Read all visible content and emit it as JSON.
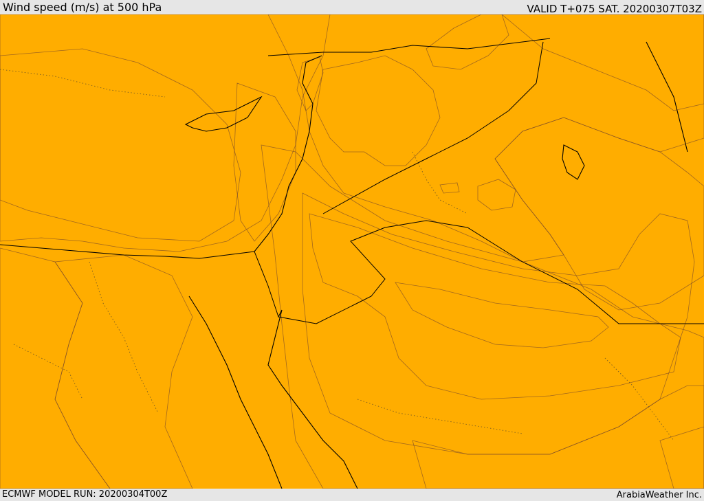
{
  "header": {
    "title": "Wind speed (m/s) at 500 hPa",
    "valid": "VALID T+075 SAT. 20200307T03Z"
  },
  "footer": {
    "model_run": "ECMWF MODEL RUN: 20200304T00Z",
    "credit": "ArabiaWeather Inc."
  },
  "colors": {
    "band_white": "#ffffff",
    "band_beige": "#fde0a8",
    "band_yellow": "#ffff00",
    "band_lightgold": "#ffdc00",
    "band_gold": "#ffc400",
    "band_amber": "#ffad00",
    "band_orange": "#ff9500",
    "band_darkorange": "#ff7a00",
    "band_redorange": "#ff6200",
    "band_red": "#ff4400"
  }
}
